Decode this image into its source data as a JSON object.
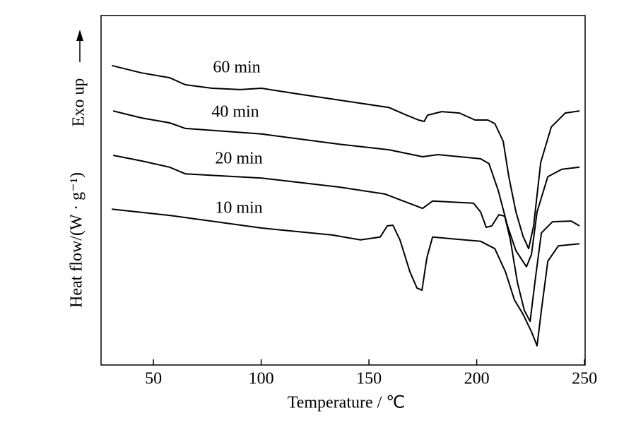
{
  "chart_data": {
    "type": "line",
    "xlabel": "Temperature / ℃",
    "ylabel": "Heat flow/(W · g⁻¹)",
    "annotation": "Exo up",
    "xlim": [
      25.7,
      250.3
    ],
    "xticks": [
      50,
      100,
      150,
      200,
      250
    ],
    "ylim": [
      0,
      100
    ],
    "series": [
      {
        "name": "60 min",
        "color": "#000000",
        "x": [
          30.7,
          44.4,
          57.5,
          64.8,
          77.2,
          90.3,
          100.2,
          116.6,
          136.2,
          159.2,
          167.4,
          173,
          175.6,
          177.2,
          183.8,
          192,
          199.2,
          205.1,
          208.4,
          212.3,
          214.9,
          218.2,
          221.5,
          224.1,
          226.4,
          229.7,
          234.6,
          241.1,
          247.7
        ],
        "values": [
          85.7,
          83.6,
          82.2,
          80.2,
          79.2,
          78.8,
          79.2,
          77.6,
          75.8,
          73.7,
          71.5,
          70.1,
          69.7,
          71.5,
          72.5,
          72.1,
          70.1,
          70.1,
          69.1,
          64.0,
          53.9,
          43.8,
          36.8,
          33.3,
          39.8,
          58.0,
          68.1,
          72.1,
          72.7
        ]
      },
      {
        "name": "40 min",
        "color": "#000000",
        "x": [
          31.3,
          44.4,
          57.5,
          64.8,
          100.2,
          136.2,
          159.2,
          174.9,
          182.1,
          201.8,
          205.7,
          210,
          214.3,
          218.2,
          223.1,
          225.4,
          228,
          233,
          239.5,
          247.7
        ],
        "values": [
          72.7,
          70.7,
          69.3,
          67.7,
          66.1,
          63.2,
          61.6,
          59.6,
          60.2,
          59.0,
          57.6,
          49.9,
          39.8,
          32.7,
          28.1,
          31.7,
          43.8,
          53.9,
          56.0,
          56.6
        ]
      },
      {
        "name": "20 min",
        "color": "#000000",
        "x": [
          31.3,
          44.4,
          57.5,
          64.8,
          100.2,
          136.2,
          157.5,
          174.9,
          179.5,
          198.5,
          201.8,
          204.4,
          207,
          210.3,
          213,
          215.6,
          218.9,
          222.1,
          224.8,
          227,
          230,
          235.2,
          243.8,
          247.7
        ],
        "values": [
          60.0,
          58.4,
          56.6,
          54.7,
          53.5,
          50.9,
          48.9,
          44.8,
          46.9,
          46.3,
          43.8,
          39.4,
          39.8,
          43.0,
          42.6,
          35.8,
          23.6,
          15.6,
          12.5,
          23.6,
          37.8,
          41.0,
          41.2,
          39.8
        ]
      },
      {
        "name": "10 min",
        "color": "#000000",
        "x": [
          30.7,
          57.5,
          100.2,
          133,
          146.1,
          155.2,
          158.5,
          161.1,
          164.4,
          169,
          172.3,
          174.6,
          176.9,
          179.5,
          201.8,
          208.4,
          213.3,
          217.5,
          221.5,
          225.4,
          228,
          230,
          233,
          237.9,
          247.7
        ],
        "values": [
          44.6,
          42.8,
          39.2,
          37.2,
          35.8,
          36.6,
          39.8,
          40.0,
          35.8,
          26.7,
          22.0,
          21.4,
          30.7,
          36.6,
          35.4,
          33.3,
          26.7,
          18.6,
          14.5,
          9.5,
          5.5,
          15.6,
          29.7,
          34.1,
          34.7
        ]
      }
    ]
  }
}
